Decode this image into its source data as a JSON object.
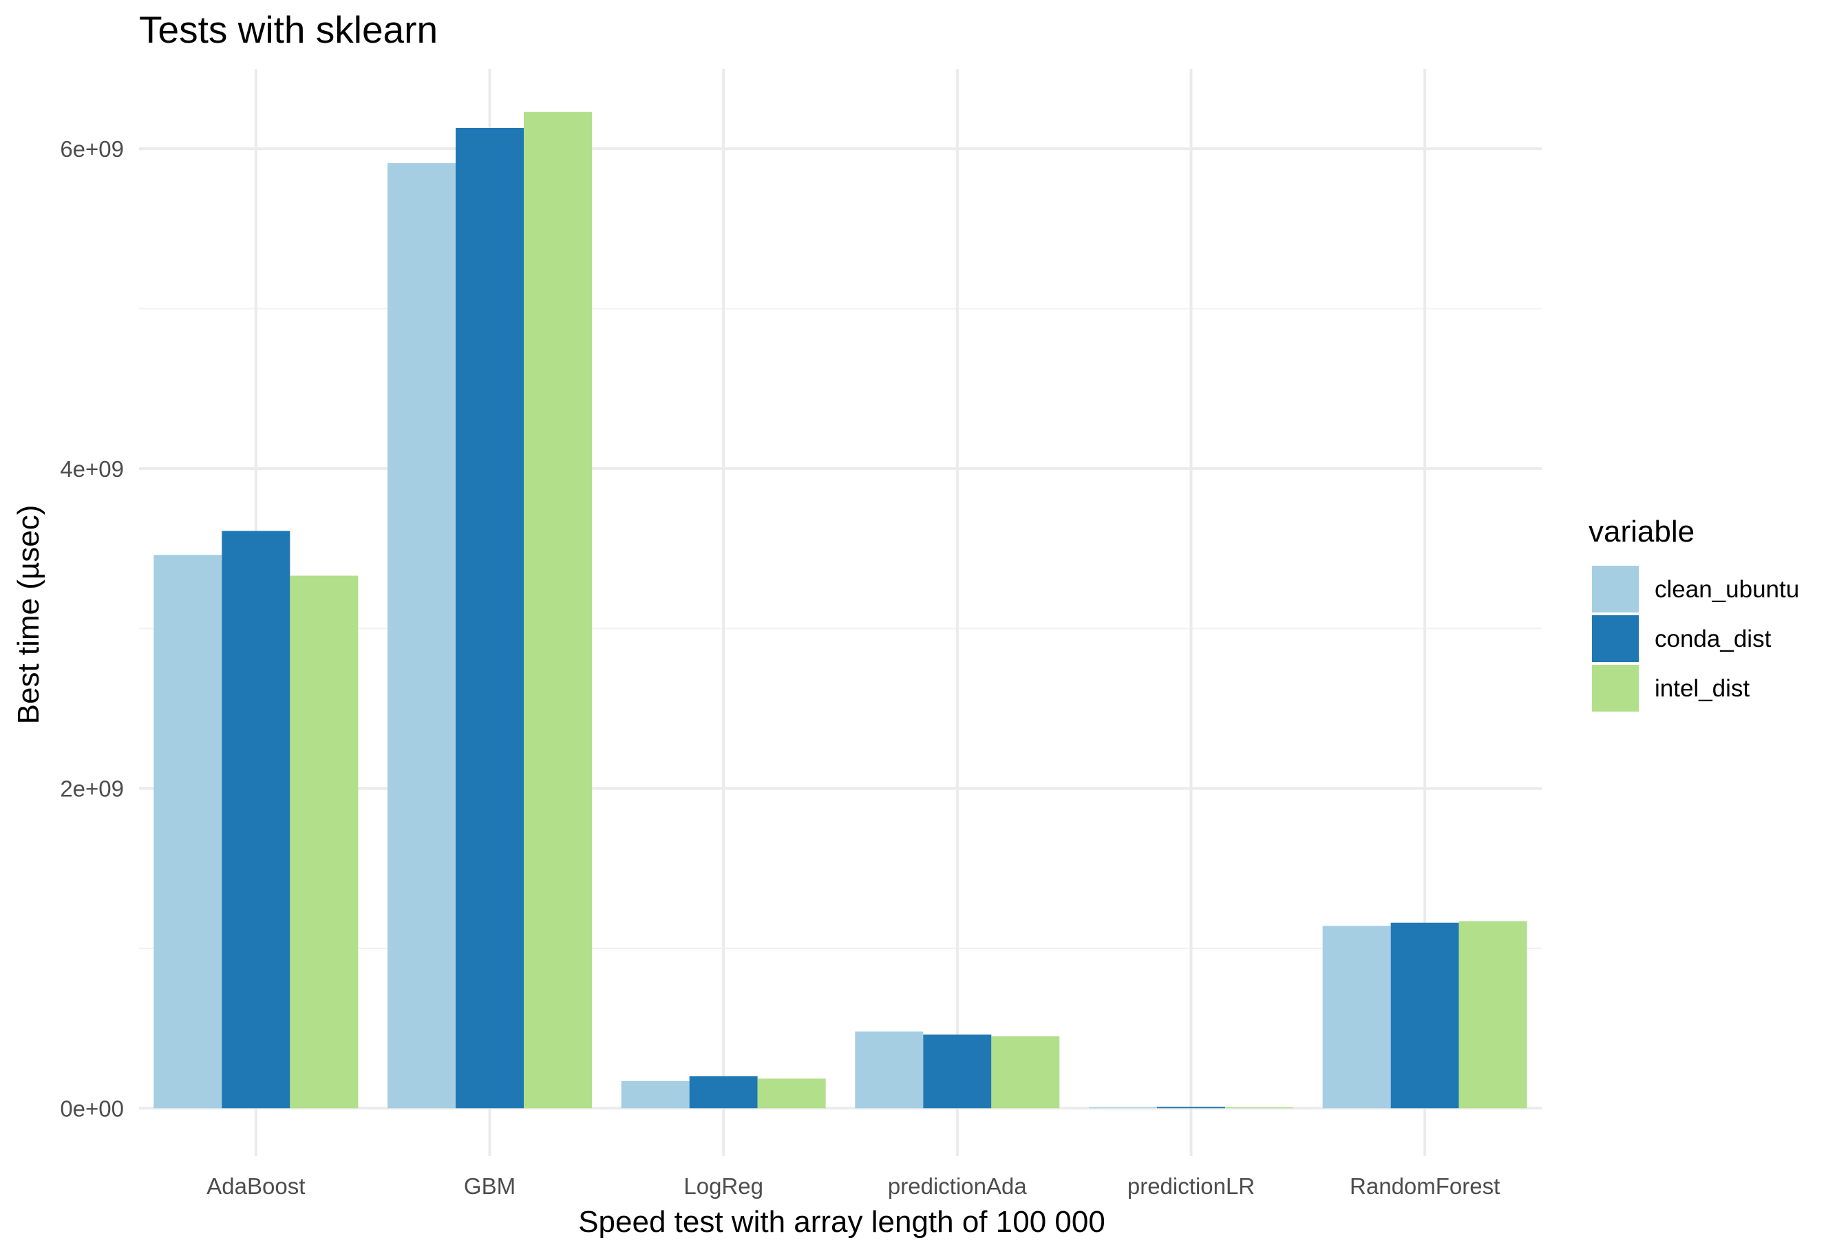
{
  "chart_data": {
    "type": "bar",
    "title": "Tests with sklearn",
    "xlabel": "Speed test with array length of 100 000",
    "ylabel": "Best time (µsec)",
    "categories": [
      "AdaBoost",
      "GBM",
      "LogReg",
      "predictionAda",
      "predictionLR",
      "RandomForest"
    ],
    "series": [
      {
        "name": "clean_ubuntu",
        "color": "#A6CEE3",
        "values": [
          3460000000,
          5910000000,
          170000000,
          480000000,
          5000000,
          1140000000
        ]
      },
      {
        "name": "conda_dist",
        "color": "#1F78B4",
        "values": [
          3610000000,
          6130000000,
          200000000,
          460000000,
          8000000,
          1160000000
        ]
      },
      {
        "name": "intel_dist",
        "color": "#B2DF8A",
        "values": [
          3330000000,
          6230000000,
          185000000,
          450000000,
          5000000,
          1170000000
        ]
      }
    ],
    "ylim": [
      -300000000,
      6500000000
    ],
    "y_ticks": [
      0,
      2000000000,
      4000000000,
      6000000000
    ],
    "y_tick_labels": [
      "0e+00",
      "2e+09",
      "4e+09",
      "6e+09"
    ],
    "grid": true,
    "legend": {
      "title": "variable",
      "position": "right"
    }
  }
}
